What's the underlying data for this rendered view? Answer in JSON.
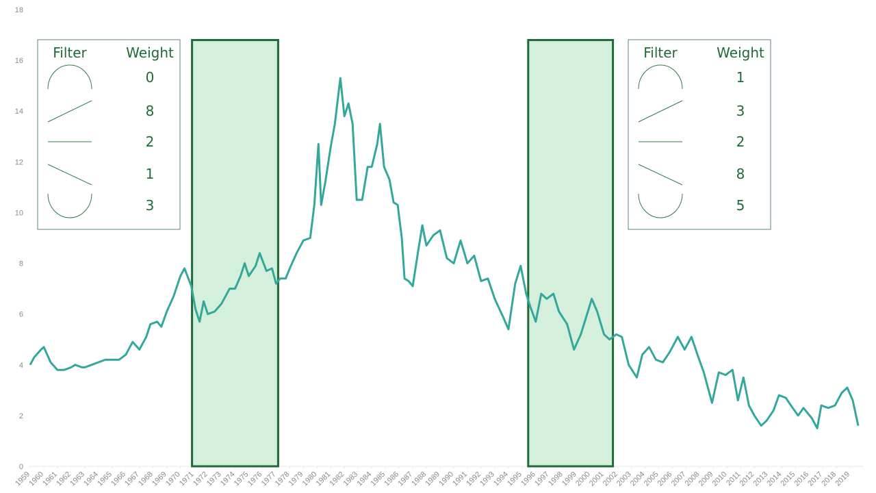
{
  "chart_data": {
    "type": "line",
    "color": "#33a89a",
    "x": [
      1959.0,
      1959.3,
      1959.8,
      1960.0,
      1960.5,
      1961.0,
      1961.5,
      1962.0,
      1962.3,
      1962.8,
      1963.0,
      1963.5,
      1964.0,
      1964.5,
      1965.0,
      1965.5,
      1966.0,
      1966.5,
      1967.0,
      1967.5,
      1967.8,
      1968.3,
      1968.6,
      1969.0,
      1969.5,
      1970.0,
      1970.3,
      1970.8,
      1971.1,
      1971.4,
      1971.7,
      1972.0,
      1972.5,
      1973.0,
      1973.6,
      1974.0,
      1974.4,
      1974.7,
      1975.0,
      1975.5,
      1975.8,
      1976.3,
      1976.7,
      1977.0,
      1977.3,
      1977.7,
      1978.0,
      1978.5,
      1979.0,
      1979.5,
      1979.8,
      1980.1,
      1980.3,
      1980.6,
      1981.0,
      1981.3,
      1981.7,
      1982.0,
      1982.3,
      1982.6,
      1982.9,
      1983.3,
      1983.7,
      1984.0,
      1984.4,
      1984.6,
      1984.9,
      1985.3,
      1985.6,
      1985.9,
      1986.2,
      1986.4,
      1986.7,
      1987.0,
      1987.4,
      1987.7,
      1988.0,
      1988.5,
      1989.0,
      1989.5,
      1990.0,
      1990.5,
      1991.0,
      1991.5,
      1992.0,
      1992.5,
      1993.0,
      1993.6,
      1994.0,
      1994.5,
      1994.9,
      1995.3,
      1995.6,
      1996.0,
      1996.4,
      1996.8,
      1997.3,
      1997.7,
      1998.3,
      1998.8,
      1999.3,
      1999.7,
      2000.1,
      2000.5,
      2001.0,
      2001.4,
      2001.9,
      2002.3,
      2002.8,
      2003.4,
      2003.8,
      2004.3,
      2004.8,
      2005.3,
      2005.8,
      2006.4,
      2006.9,
      2007.4,
      2007.9,
      2008.3,
      2008.9,
      2009.4,
      2009.9,
      2010.4,
      2010.8,
      2011.2,
      2011.6,
      2012.0,
      2012.5,
      2012.9,
      2013.4,
      2013.8,
      2014.3,
      2014.8,
      2015.2,
      2015.6,
      2016.2,
      2016.6,
      2016.9,
      2017.4,
      2017.9,
      2018.4,
      2018.8,
      2019.2,
      2019.6
    ],
    "values": [
      4.0,
      4.3,
      4.6,
      4.7,
      4.1,
      3.8,
      3.8,
      3.9,
      4.0,
      3.9,
      3.9,
      4.0,
      4.1,
      4.2,
      4.2,
      4.2,
      4.4,
      4.9,
      4.6,
      5.1,
      5.6,
      5.7,
      5.5,
      6.1,
      6.7,
      7.5,
      7.8,
      7.1,
      6.2,
      5.7,
      6.5,
      6.0,
      6.1,
      6.4,
      7.0,
      7.0,
      7.5,
      8.0,
      7.5,
      7.9,
      8.4,
      7.7,
      7.8,
      7.2,
      7.4,
      7.4,
      7.8,
      8.4,
      8.9,
      9.0,
      10.3,
      12.7,
      10.3,
      11.2,
      12.6,
      13.5,
      15.3,
      13.8,
      14.3,
      13.5,
      10.5,
      10.5,
      11.8,
      11.8,
      12.7,
      13.5,
      11.8,
      11.3,
      10.4,
      10.3,
      9.0,
      7.4,
      7.3,
      7.1,
      8.5,
      9.5,
      8.7,
      9.1,
      9.3,
      8.2,
      8.0,
      8.9,
      8.0,
      8.3,
      7.3,
      7.4,
      6.6,
      5.9,
      5.4,
      7.2,
      7.9,
      6.8,
      6.3,
      5.7,
      6.8,
      6.6,
      6.8,
      6.1,
      5.6,
      4.6,
      5.2,
      5.9,
      6.6,
      6.1,
      5.2,
      5.0,
      5.2,
      5.1,
      4.0,
      3.5,
      4.4,
      4.7,
      4.2,
      4.1,
      4.5,
      5.1,
      4.6,
      5.1,
      4.3,
      3.7,
      2.5,
      3.7,
      3.6,
      3.8,
      2.6,
      3.5,
      2.4,
      2.0,
      1.6,
      1.8,
      2.2,
      2.8,
      2.7,
      2.3,
      2.0,
      2.3,
      1.9,
      1.5,
      2.4,
      2.3,
      2.4,
      2.9,
      3.1,
      2.6,
      1.6
    ],
    "xlim": [
      1959,
      2020
    ],
    "xticks": [
      1959,
      1960,
      1961,
      1962,
      1963,
      1964,
      1965,
      1966,
      1967,
      1968,
      1969,
      1970,
      1971,
      1972,
      1973,
      1974,
      1975,
      1976,
      1977,
      1978,
      1979,
      1980,
      1981,
      1982,
      1983,
      1984,
      1985,
      1986,
      1987,
      1988,
      1989,
      1990,
      1991,
      1992,
      1993,
      1994,
      1995,
      1996,
      1997,
      1998,
      1999,
      2000,
      2001,
      2002,
      2003,
      2004,
      2005,
      2006,
      2007,
      2008,
      2009,
      2010,
      2011,
      2012,
      2013,
      2014,
      2015,
      2016,
      2017,
      2018,
      2019
    ],
    "ylim": [
      0,
      18
    ],
    "yticks": [
      0,
      2,
      4,
      6,
      8,
      10,
      12,
      14,
      16,
      18
    ],
    "grid": false,
    "highlights": [
      {
        "x": [
          1970.85,
          1977.15
        ],
        "y": [
          0,
          16.8
        ],
        "color": "#d4efdc",
        "edge": "#1e6b35"
      },
      {
        "x": [
          1995.45,
          2001.65
        ],
        "y": [
          0,
          16.8
        ],
        "color": "#d4efdc",
        "edge": "#1e6b35"
      }
    ],
    "panels": [
      {
        "headers": [
          "Filter",
          "Weight"
        ],
        "weights": [
          0,
          8,
          2,
          1,
          3
        ]
      },
      {
        "headers": [
          "Filter",
          "Weight"
        ],
        "weights": [
          1,
          3,
          2,
          8,
          5
        ]
      }
    ]
  }
}
